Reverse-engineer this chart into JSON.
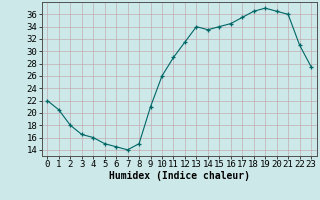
{
  "x": [
    0,
    1,
    2,
    3,
    4,
    5,
    6,
    7,
    8,
    9,
    10,
    11,
    12,
    13,
    14,
    15,
    16,
    17,
    18,
    19,
    20,
    21,
    22,
    23
  ],
  "y": [
    22,
    20.5,
    18,
    16.5,
    16,
    15,
    14.5,
    14,
    15,
    21,
    26,
    29,
    31.5,
    34,
    33.5,
    34,
    34.5,
    35.5,
    36.5,
    37,
    36.5,
    36,
    31,
    27.5
  ],
  "line_color": "#006666",
  "marker": "+",
  "bg_color": "#cce8e8",
  "grid_color_major": "#aaaaaa",
  "xlabel": "Humidex (Indice chaleur)",
  "ylim": [
    13,
    38
  ],
  "xlim": [
    -0.5,
    23.5
  ],
  "yticks": [
    14,
    16,
    18,
    20,
    22,
    24,
    26,
    28,
    30,
    32,
    34,
    36
  ],
  "xticks": [
    0,
    1,
    2,
    3,
    4,
    5,
    6,
    7,
    8,
    9,
    10,
    11,
    12,
    13,
    14,
    15,
    16,
    17,
    18,
    19,
    20,
    21,
    22,
    23
  ],
  "xlabel_fontsize": 7,
  "tick_fontsize": 6.5
}
